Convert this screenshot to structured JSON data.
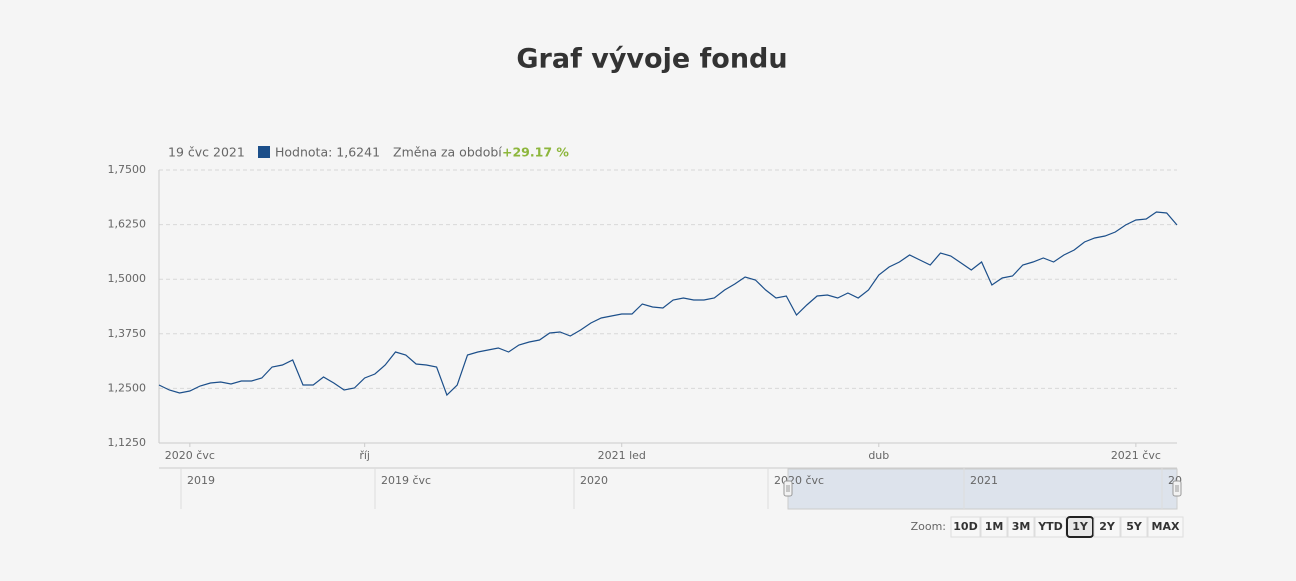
{
  "chart_data": {
    "type": "line",
    "title": "Graf vývoje fondu",
    "tooltip": {
      "date": "19 čvc 2021",
      "value_text": "Hodnota: 1,6241",
      "change_label": "Změna za období",
      "change_value": "+29.17 %"
    },
    "series": [
      {
        "name": "Hodnota",
        "color": "#1c4f8a",
        "values": [
          1.2578,
          1.2463,
          1.2395,
          1.244,
          1.2555,
          1.2624,
          1.2646,
          1.2601,
          1.2669,
          1.2669,
          1.2738,
          1.299,
          1.3035,
          1.315,
          1.2578,
          1.2578,
          1.2761,
          1.2624,
          1.2463,
          1.2509,
          1.2738,
          1.2829,
          1.3035,
          1.3333,
          1.3265,
          1.3058,
          1.3035,
          1.299,
          1.2349,
          1.2578,
          1.3265,
          1.3333,
          1.3379,
          1.3425,
          1.3333,
          1.3493,
          1.3562,
          1.3608,
          1.3768,
          1.3791,
          1.3699,
          1.3837,
          1.3997,
          1.4112,
          1.4157,
          1.4203,
          1.4203,
          1.4432,
          1.4363,
          1.4341,
          1.4524,
          1.457,
          1.4524,
          1.4524,
          1.457,
          1.4753,
          1.489,
          1.505,
          1.4982,
          1.4753,
          1.457,
          1.4615,
          1.418,
          1.4409,
          1.4615,
          1.4638,
          1.457,
          1.4684,
          1.457,
          1.4753,
          1.5096,
          1.5279,
          1.5394,
          1.5554,
          1.544,
          1.5325,
          1.56,
          1.5531,
          1.5371,
          1.5211,
          1.5394,
          1.4867,
          1.5027,
          1.5073,
          1.5325,
          1.5394,
          1.5485,
          1.5394,
          1.5554,
          1.5668,
          1.5852,
          1.5943,
          1.5989,
          1.608,
          1.6241,
          1.6355,
          1.6378,
          1.6538,
          1.6516,
          1.6241
        ]
      }
    ],
    "xlim": [
      0,
      99
    ],
    "xticks": [
      {
        "value": 3,
        "label": "2020 čvc"
      },
      {
        "value": 20,
        "label": "říj"
      },
      {
        "value": 45,
        "label": "2021 led"
      },
      {
        "value": 70,
        "label": "dub"
      },
      {
        "value": 95,
        "label": "2021 čvc"
      }
    ],
    "ylim": [
      1.125,
      1.75
    ],
    "yticks": [
      {
        "value": 1.125,
        "label": "1,1250"
      },
      {
        "value": 1.25,
        "label": "1,2500"
      },
      {
        "value": 1.375,
        "label": "1,3750"
      },
      {
        "value": 1.5,
        "label": "1,5000"
      },
      {
        "value": 1.625,
        "label": "1,6250"
      },
      {
        "value": 1.75,
        "label": "1,7500"
      }
    ],
    "grid": true,
    "navigator_labels": [
      "2019",
      "2019 čvc",
      "2020",
      "2020 čvc",
      "2021",
      "20"
    ],
    "zoom_label": "Zoom:",
    "zoom_buttons": [
      "10D",
      "1M",
      "3M",
      "YTD",
      "1Y",
      "2Y",
      "5Y",
      "MAX"
    ],
    "selected_zoom": "1Y"
  }
}
